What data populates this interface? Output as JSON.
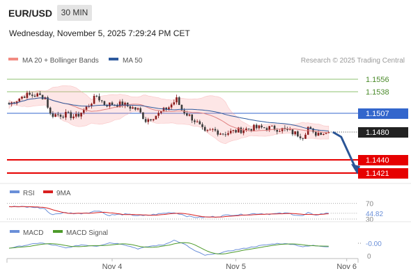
{
  "header": {
    "symbol": "EUR/USD",
    "timeframe": "30 MIN",
    "datetime": "Wednesday, November 5, 2025 7:29:24 PM CET"
  },
  "colors": {
    "up": "#8b1a1a",
    "down": "#3a3a3a",
    "bollinger": "#f7a6a6",
    "ma20": "#e08080",
    "ma50": "#2e5a9e",
    "green_level": "#8dc26f",
    "blue_level": "#3366cc",
    "red_level": "#e60000",
    "price": "#222222",
    "rsi": "#6a8fd8",
    "rsi_ma": "#d92020",
    "macd": "#6a8fd8",
    "macd_signal": "#4c9a2a"
  },
  "chart_data": [
    {
      "type": "candlestick",
      "title": "",
      "legend": [
        {
          "name": "MA 20 + Bollinger Bands",
          "color": "#f28b82"
        },
        {
          "name": "MA 50",
          "color": "#2e5a9e"
        }
      ],
      "legend_placement": "top-left",
      "credit": "Research © 2025 Trading Central",
      "ylim": [
        1.141,
        1.157
      ],
      "x_ticks": [
        {
          "label": "Nov 4",
          "index": 40
        },
        {
          "label": "Nov 5",
          "index": 88
        },
        {
          "label": "Nov 6",
          "index": 131
        }
      ],
      "levels": [
        {
          "value": 1.1556,
          "label": "1.1556",
          "kind": "resistance-green"
        },
        {
          "value": 1.1538,
          "label": "1.1538",
          "kind": "resistance-green"
        },
        {
          "value": 1.1507,
          "label": "1.1507",
          "kind": "pivot-blue"
        },
        {
          "value": 1.144,
          "label": "1.1440",
          "kind": "support-red"
        },
        {
          "value": 1.1421,
          "label": "1.1421",
          "kind": "support-red"
        }
      ],
      "last_price": {
        "value": 1.148,
        "label": "1.1480"
      },
      "projection": {
        "from": 1.148,
        "to": 1.1425
      },
      "anchors": [
        [
          0,
          1.152
        ],
        [
          6,
          1.1533
        ],
        [
          11,
          1.1533
        ],
        [
          14,
          1.153
        ],
        [
          16,
          1.1505
        ],
        [
          22,
          1.1505
        ],
        [
          26,
          1.1502
        ],
        [
          30,
          1.1515
        ],
        [
          34,
          1.1532
        ],
        [
          37,
          1.152
        ],
        [
          44,
          1.152
        ],
        [
          50,
          1.1512
        ],
        [
          53,
          1.1497
        ],
        [
          58,
          1.1506
        ],
        [
          62,
          1.1516
        ],
        [
          65,
          1.1527
        ],
        [
          67,
          1.1512
        ],
        [
          71,
          1.15
        ],
        [
          73,
          1.1493
        ],
        [
          76,
          1.1478
        ],
        [
          79,
          1.1483
        ],
        [
          83,
          1.1478
        ],
        [
          86,
          1.148
        ],
        [
          90,
          1.1483
        ],
        [
          95,
          1.1486
        ],
        [
          101,
          1.1486
        ],
        [
          106,
          1.1484
        ],
        [
          111,
          1.1478
        ],
        [
          114,
          1.1474
        ],
        [
          116,
          1.1487
        ],
        [
          118,
          1.1477
        ],
        [
          121,
          1.148
        ],
        [
          124,
          1.1478
        ]
      ],
      "candle_count": 125
    },
    {
      "type": "line",
      "panel": "RSI",
      "series": [
        {
          "name": "RSI",
          "color": "#6a8fd8"
        },
        {
          "name": "9MA",
          "color": "#d92020"
        }
      ],
      "ylim": [
        25,
        80
      ],
      "ticks": [
        {
          "value": 70,
          "label": "70"
        },
        {
          "value": 30,
          "label": "30"
        }
      ],
      "last_value": {
        "value": 44.82,
        "label": "44.82"
      },
      "rsi_anchors": [
        [
          0,
          62
        ],
        [
          10,
          60
        ],
        [
          14,
          56
        ],
        [
          16,
          42
        ],
        [
          22,
          46
        ],
        [
          27,
          44
        ],
        [
          32,
          48
        ],
        [
          35,
          52
        ],
        [
          38,
          40
        ],
        [
          45,
          42
        ],
        [
          52,
          38
        ],
        [
          58,
          43
        ],
        [
          63,
          47
        ],
        [
          66,
          44
        ],
        [
          70,
          36
        ],
        [
          74,
          34
        ],
        [
          80,
          36
        ],
        [
          86,
          41
        ],
        [
          90,
          41
        ],
        [
          96,
          44
        ],
        [
          102,
          43
        ],
        [
          108,
          45
        ],
        [
          112,
          40
        ],
        [
          114,
          38
        ],
        [
          116,
          46
        ],
        [
          118,
          40
        ],
        [
          121,
          43
        ],
        [
          124,
          44.82
        ]
      ]
    },
    {
      "type": "line",
      "panel": "MACD",
      "series": [
        {
          "name": "MACD",
          "color": "#6a8fd8"
        },
        {
          "name": "MACD Signal",
          "color": "#4c9a2a"
        }
      ],
      "ylim": [
        -0.0018,
        0.0016
      ],
      "ticks": [
        {
          "value": 0,
          "label": "0"
        }
      ],
      "last_value": {
        "value": 0.0,
        "label": "-0.00"
      },
      "macd_anchors": [
        [
          0,
          -0.0002
        ],
        [
          6,
          0.0002
        ],
        [
          12,
          0.0006
        ],
        [
          18,
          0.0002
        ],
        [
          22,
          -0.0002
        ],
        [
          28,
          0.0003
        ],
        [
          34,
          0.0001
        ],
        [
          39,
          0.0006
        ],
        [
          44,
          0.0004
        ],
        [
          50,
          -0.0003
        ],
        [
          55,
          0.0001
        ],
        [
          60,
          0.0003
        ],
        [
          64,
          0.001
        ],
        [
          68,
          0.0004
        ],
        [
          72,
          -0.0006
        ],
        [
          76,
          -0.0013
        ],
        [
          80,
          -0.0011
        ],
        [
          86,
          -0.0006
        ],
        [
          92,
          -0.0002
        ],
        [
          98,
          0.0002
        ],
        [
          104,
          0.0005
        ],
        [
          110,
          0.0004
        ],
        [
          114,
          0.0
        ],
        [
          118,
          0.0002
        ],
        [
          124,
          0.0
        ]
      ]
    }
  ]
}
